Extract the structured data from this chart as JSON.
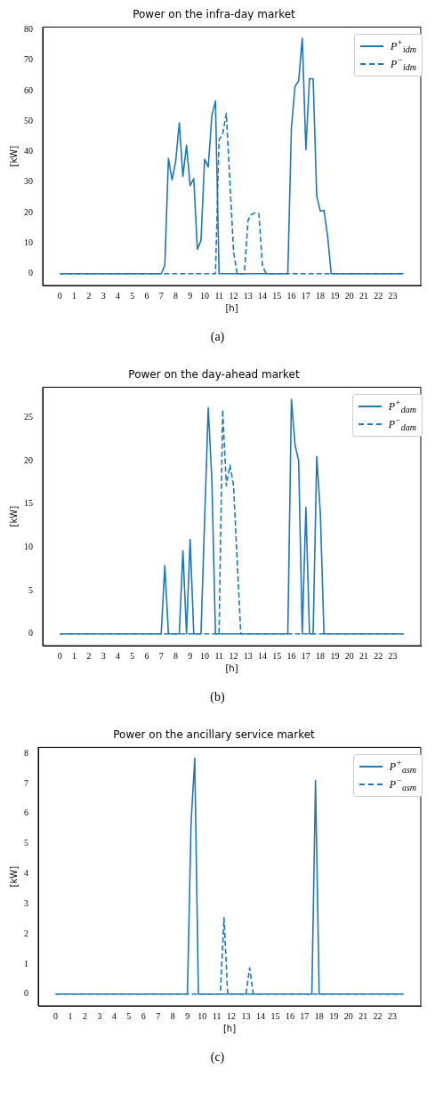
{
  "chart_data": [
    {
      "type": "line",
      "title": "Power on the infra-day market",
      "xlabel": "[h]",
      "ylabel": "[kW]",
      "annotations": [
        "(a)"
      ],
      "legend": "top right",
      "xlim": [
        -1.19,
        24.94
      ],
      "xticks": [
        0,
        1,
        2,
        3,
        4,
        5,
        6,
        7,
        8,
        9,
        10,
        11,
        12,
        13,
        14,
        15,
        16,
        17,
        18,
        19,
        20,
        21,
        22,
        23
      ],
      "ylim": [
        -3.85,
        80.85
      ],
      "yticks": [
        0,
        10,
        20,
        30,
        40,
        50,
        60,
        70,
        80
      ],
      "series": [
        {
          "name": "P$^{+}$$_{idm}$",
          "color": "#1f77b4",
          "line_style": "solid",
          "x": [
            0,
            7.0,
            7.25,
            7.5,
            7.75,
            8.0,
            8.25,
            8.5,
            8.75,
            9.0,
            9.25,
            9.5,
            9.75,
            10.0,
            10.25,
            10.5,
            10.75,
            11.0,
            15.75,
            16.0,
            16.25,
            16.5,
            16.75,
            17.0,
            17.25,
            17.5,
            17.75,
            18.0,
            18.25,
            18.5,
            18.75,
            23.75
          ],
          "values": [
            0,
            0,
            2.7,
            37.8,
            30.7,
            36.8,
            49.5,
            31.9,
            42.1,
            28.9,
            31.2,
            8.0,
            10.9,
            37.5,
            35.0,
            51.8,
            56.6,
            0,
            0,
            47.8,
            61.4,
            63.2,
            77.2,
            40.7,
            63.9,
            63.9,
            25.4,
            20.5,
            20.8,
            12.4,
            0,
            0
          ]
        },
        {
          "name": "P$^{−}$$_{idm}$",
          "color": "#1f77b4",
          "line_style": "dashed",
          "x": [
            0,
            10.75,
            11.0,
            11.25,
            11.5,
            11.75,
            12.0,
            12.25,
            12.75,
            13.0,
            13.25,
            13.5,
            13.75,
            14.0,
            14.25,
            23.75
          ],
          "values": [
            0,
            0,
            43.9,
            45.9,
            52.5,
            30,
            7.3,
            0,
            0,
            17.5,
            19.5,
            19.9,
            19.7,
            2.7,
            0,
            0
          ]
        }
      ]
    },
    {
      "type": "line",
      "title": "Power on the day-ahead market",
      "xlabel": "[h]",
      "ylabel": "[kW]",
      "annotations": [
        "(b)"
      ],
      "legend": "top right",
      "xlim": [
        -1.19,
        24.94
      ],
      "xticks": [
        0,
        1,
        2,
        3,
        4,
        5,
        6,
        7,
        8,
        9,
        10,
        11,
        12,
        13,
        14,
        15,
        16,
        17,
        18,
        19,
        20,
        21,
        22,
        23
      ],
      "ylim": [
        -1.36,
        28.49
      ],
      "yticks": [
        0,
        5,
        10,
        15,
        20,
        25
      ],
      "series": [
        {
          "name": "P$^{+}$$_{dam}$",
          "color": "#1f77b4",
          "line_style": "solid",
          "x": [
            0,
            7.0,
            7.25,
            7.5,
            8.25,
            8.5,
            8.75,
            9.0,
            9.25,
            9.75,
            10.25,
            10.5,
            10.75,
            15.75,
            16.0,
            16.25,
            16.5,
            16.75,
            17.0,
            17.25,
            17.5,
            17.75,
            18.0,
            18.25,
            23.75
          ],
          "values": [
            0,
            0,
            7.9,
            0,
            0,
            9.6,
            0,
            10.9,
            0,
            0,
            26.1,
            17.9,
            0,
            0,
            27.1,
            21.8,
            20.0,
            0,
            14.6,
            0,
            0,
            20.5,
            13.9,
            0,
            0
          ]
        },
        {
          "name": "P$^{−}$$_{dam}$",
          "color": "#1f77b4",
          "line_style": "dashed",
          "x": [
            0,
            11.0,
            11.25,
            11.5,
            11.75,
            12.0,
            12.5,
            23.75
          ],
          "values": [
            0,
            0,
            25.9,
            17.1,
            19.5,
            17.1,
            0,
            0
          ]
        }
      ]
    },
    {
      "type": "line",
      "title": "Power on the ancillary service market",
      "xlabel": "[h]",
      "ylabel": "[kW]",
      "annotations": [
        "(c)"
      ],
      "legend": "top right",
      "xlim": [
        -1.19,
        24.94
      ],
      "xticks": [
        0,
        1,
        2,
        3,
        4,
        5,
        6,
        7,
        8,
        9,
        10,
        11,
        12,
        13,
        14,
        15,
        16,
        17,
        18,
        19,
        20,
        21,
        22,
        23
      ],
      "ylim": [
        -0.39,
        8.2
      ],
      "yticks": [
        0,
        1,
        2,
        3,
        4,
        5,
        6,
        7,
        8
      ],
      "series": [
        {
          "name": "P$^{+}$$_{asm}$",
          "color": "#1f77b4",
          "line_style": "solid",
          "x": [
            0,
            9.0,
            9.25,
            9.5,
            9.75,
            17.5,
            17.75,
            18.0,
            23.75
          ],
          "values": [
            0,
            0,
            5.7,
            7.83,
            0,
            0,
            7.1,
            0,
            0
          ]
        },
        {
          "name": "P$^{−}$$_{asm}$",
          "color": "#1f77b4",
          "line_style": "dashed",
          "x": [
            0,
            11.25,
            11.5,
            11.75,
            13.0,
            13.25,
            13.5,
            23.75
          ],
          "values": [
            0,
            0,
            2.54,
            0,
            0,
            0.87,
            0,
            0
          ]
        }
      ]
    }
  ]
}
